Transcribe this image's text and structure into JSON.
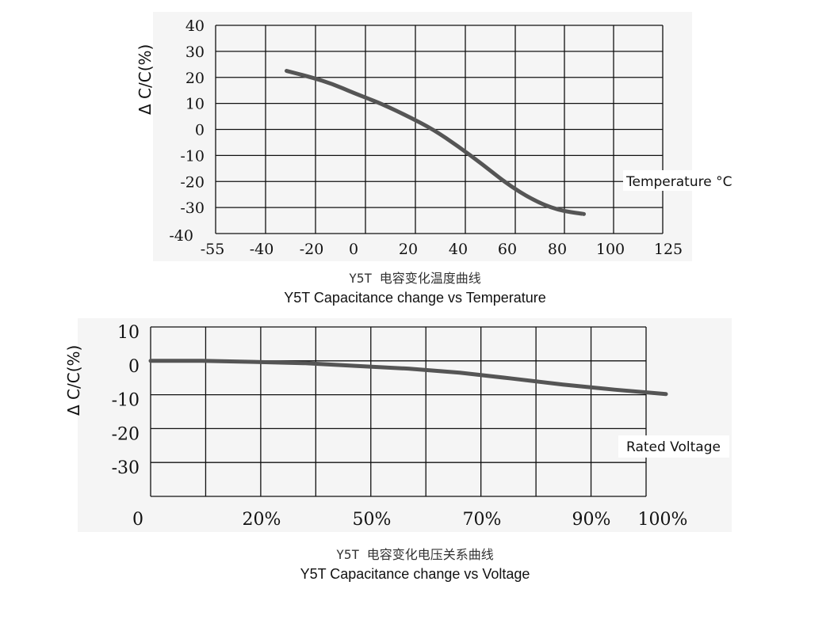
{
  "chart_data": [
    {
      "type": "line",
      "ylabel": "Δ C/C(%)",
      "annotation": "Temperature °C",
      "x_tick_labels": [
        "-55",
        "-40",
        "-20",
        "0",
        "20",
        "40",
        "60",
        "80",
        "100",
        "125"
      ],
      "y_tick_labels": [
        "40",
        "30",
        "20",
        "10",
        "0",
        "-10",
        "-20",
        "-30",
        "-40"
      ],
      "ylim": [
        -40,
        40
      ],
      "grid": true,
      "series": [
        {
          "color": "#555555",
          "x": [
            -30,
            -20,
            -10,
            0,
            10,
            20,
            30,
            40,
            50,
            60,
            70,
            80,
            90
          ],
          "y": [
            22.5,
            20,
            17.5,
            14,
            10,
            5,
            0,
            -6.5,
            -13.5,
            -21,
            -27,
            -31,
            -32.5
          ]
        }
      ]
    },
    {
      "type": "line",
      "ylabel": "Δ C/C(%)",
      "annotation": "Rated Voltage",
      "x_tick_labels": [
        "0",
        "20%",
        "50%",
        "70%",
        "90%",
        "100%"
      ],
      "y_tick_labels": [
        "10",
        "0",
        "-10",
        "-20",
        "-30"
      ],
      "ylim": [
        -40,
        10
      ],
      "grid": true,
      "series": [
        {
          "color": "#555555",
          "x": [
            0,
            10,
            20,
            30,
            40,
            50,
            60,
            70,
            80,
            90,
            100
          ],
          "y": [
            0,
            0,
            -0.3,
            -0.7,
            -1.5,
            -2.3,
            -3.5,
            -5.2,
            -7.0,
            -8.5,
            -9.8
          ]
        }
      ]
    }
  ],
  "captions": {
    "chart1_cn": "Y5T 电容变化温度曲线",
    "chart1_en": "Y5T Capacitance change vs Temperature",
    "chart2_cn": "Y5T 电容变化电压关系曲线",
    "chart2_en": "Y5T Capacitance change vs Voltage"
  }
}
